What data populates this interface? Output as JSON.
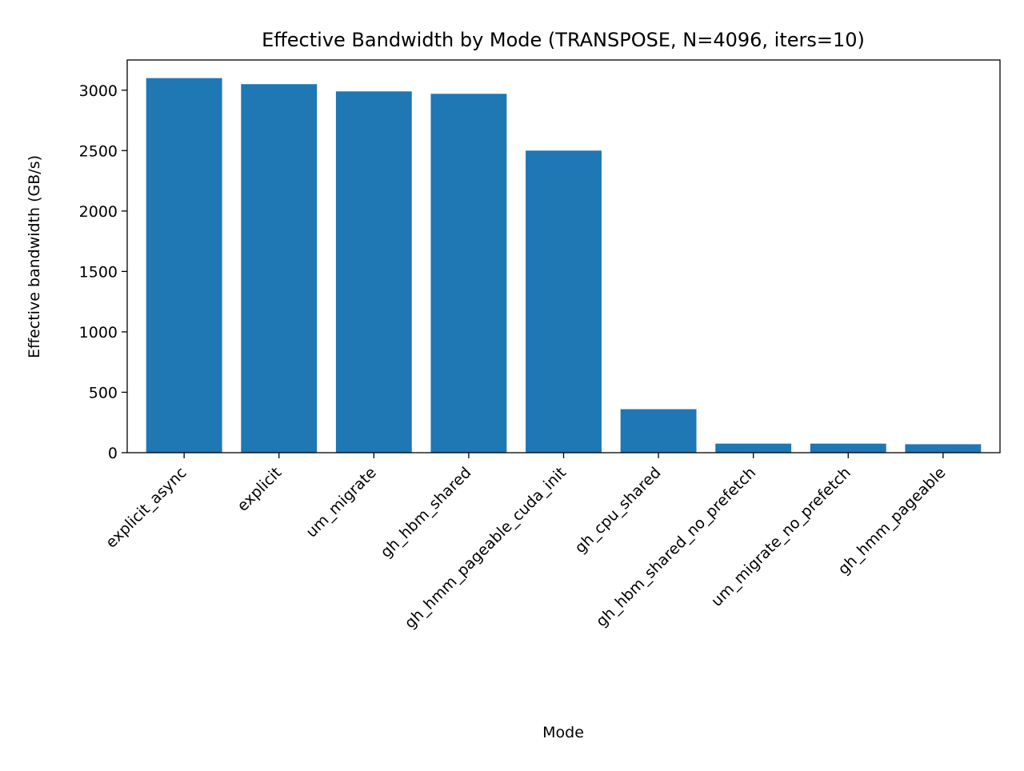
{
  "chart_data": {
    "type": "bar",
    "title": "Effective Bandwidth by Mode (TRANSPOSE, N=4096, iters=10)",
    "xlabel": "Mode",
    "ylabel": "Effective bandwidth (GB/s)",
    "categories": [
      "explicit_async",
      "explicit",
      "um_migrate",
      "gh_hbm_shared",
      "gh_hmm_pageable_cuda_init",
      "gh_cpu_shared",
      "gh_hbm_shared_no_prefetch",
      "um_migrate_no_prefetch",
      "gh_hmm_pageable"
    ],
    "values": [
      3100,
      3050,
      2990,
      2970,
      2500,
      360,
      75,
      75,
      70
    ],
    "ylim": [
      0,
      3250
    ],
    "yticks": [
      0,
      500,
      1000,
      1500,
      2000,
      2500,
      3000
    ],
    "bar_color": "#1f77b4",
    "grid": false,
    "legend": "none"
  }
}
